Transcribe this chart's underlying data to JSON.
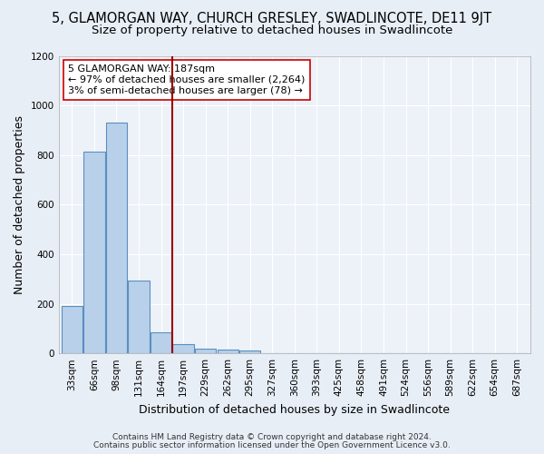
{
  "title": "5, GLAMORGAN WAY, CHURCH GRESLEY, SWADLINCOTE, DE11 9JT",
  "subtitle": "Size of property relative to detached houses in Swadlincote",
  "xlabel": "Distribution of detached houses by size in Swadlincote",
  "ylabel": "Number of detached properties",
  "footnote1": "Contains HM Land Registry data © Crown copyright and database right 2024.",
  "footnote2": "Contains public sector information licensed under the Open Government Licence v3.0.",
  "bar_labels": [
    "33sqm",
    "66sqm",
    "98sqm",
    "131sqm",
    "164sqm",
    "197sqm",
    "229sqm",
    "262sqm",
    "295sqm",
    "327sqm",
    "360sqm",
    "393sqm",
    "425sqm",
    "458sqm",
    "491sqm",
    "524sqm",
    "556sqm",
    "589sqm",
    "622sqm",
    "654sqm",
    "687sqm"
  ],
  "bar_values": [
    190,
    815,
    930,
    295,
    85,
    38,
    20,
    14,
    10,
    0,
    0,
    0,
    0,
    0,
    0,
    0,
    0,
    0,
    0,
    0,
    0
  ],
  "bar_color": "#b8d0ea",
  "bar_edge_color": "#5a8fc0",
  "vline_color": "#990000",
  "annotation_line1": "5 GLAMORGAN WAY: 187sqm",
  "annotation_line2": "← 97% of detached houses are smaller (2,264)",
  "annotation_line3": "3% of semi-detached houses are larger (78) →",
  "annotation_box_color": "#ffffff",
  "annotation_box_edge": "#cc0000",
  "ylim": [
    0,
    1200
  ],
  "yticks": [
    0,
    200,
    400,
    600,
    800,
    1000,
    1200
  ],
  "bg_color": "#e8eef6",
  "plot_bg_color": "#edf2f8",
  "grid_color": "#ffffff",
  "title_fontsize": 10.5,
  "subtitle_fontsize": 9.5,
  "axis_label_fontsize": 9,
  "tick_fontsize": 7.5,
  "annotation_fontsize": 8,
  "footnote_fontsize": 6.5
}
